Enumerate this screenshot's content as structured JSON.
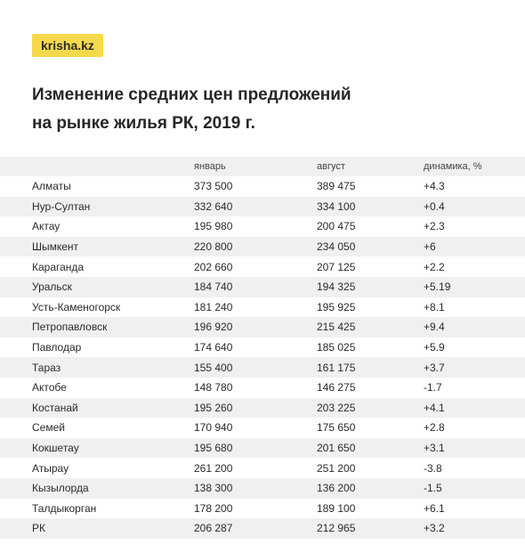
{
  "logo": "krisha.kz",
  "title_lines": [
    "Изменение средних цен предложений",
    "на рынке жилья РК, 2019 г."
  ],
  "colors": {
    "logo_bg": "#f6d94a",
    "stripe": "#f0f0f0"
  },
  "chart_data": {
    "type": "table",
    "title": "Изменение средних цен предложений на рынке жилья РК, 2019 г.",
    "columns": [
      "",
      "январь",
      "август",
      "динамика, %"
    ],
    "rows": [
      {
        "city": "Алматы",
        "jan": "373 500",
        "aug": "389 475",
        "change": "+4.3"
      },
      {
        "city": "Нур-Султан",
        "jan": "332 640",
        "aug": "334 100",
        "change": "+0.4"
      },
      {
        "city": "Актау",
        "jan": "195 980",
        "aug": "200 475",
        "change": "+2.3"
      },
      {
        "city": "Шымкент",
        "jan": "220 800",
        "aug": "234 050",
        "change": "+6"
      },
      {
        "city": "Караганда",
        "jan": "202 660",
        "aug": "207 125",
        "change": "+2.2"
      },
      {
        "city": "Уральск",
        "jan": "184 740",
        "aug": "194 325",
        "change": "+5.19"
      },
      {
        "city": "Усть-Каменогорск",
        "jan": "181 240",
        "aug": "195 925",
        "change": "+8.1"
      },
      {
        "city": "Петропавловск",
        "jan": "196 920",
        "aug": "215 425",
        "change": "+9.4"
      },
      {
        "city": "Павлодар",
        "jan": "174 640",
        "aug": "185 025",
        "change": "+5.9"
      },
      {
        "city": "Тараз",
        "jan": "155 400",
        "aug": "161 175",
        "change": "+3.7"
      },
      {
        "city": "Актобе",
        "jan": "148 780",
        "aug": "146 275",
        "change": "-1.7"
      },
      {
        "city": "Костанай",
        "jan": "195 260",
        "aug": "203 225",
        "change": "+4.1"
      },
      {
        "city": "Семей",
        "jan": "170 940",
        "aug": "175 650",
        "change": "+2.8"
      },
      {
        "city": "Кокшетау",
        "jan": "195 680",
        "aug": "201 650",
        "change": "+3.1"
      },
      {
        "city": "Атырау",
        "jan": "261 200",
        "aug": "251 200",
        "change": "-3.8"
      },
      {
        "city": "Кызылорда",
        "jan": "138 300",
        "aug": "136 200",
        "change": "-1.5"
      },
      {
        "city": "Талдыкорган",
        "jan": "178 200",
        "aug": "189 100",
        "change": "+6.1"
      },
      {
        "city": "РК",
        "jan": "206 287",
        "aug": "212 965",
        "change": "+3.2"
      }
    ]
  }
}
